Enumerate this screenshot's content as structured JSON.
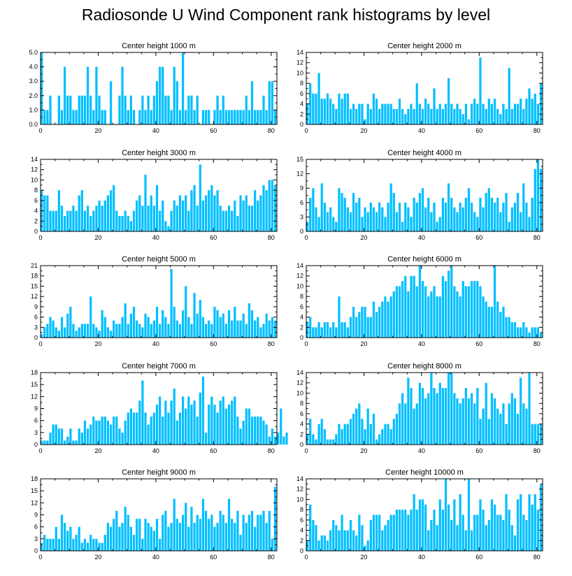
{
  "figure_title": "Radiosonde U Wind Component rank histograms by level",
  "colors": {
    "bar": "#00bfff",
    "axis": "#000000",
    "background": "#ffffff"
  },
  "chart_data": [
    {
      "type": "bar",
      "title": "Center height 1000 m",
      "xlabel": "",
      "ylabel": "",
      "xlim": [
        0,
        82
      ],
      "ylim": [
        0,
        5
      ],
      "xticks": [
        0,
        20,
        40,
        60,
        80
      ],
      "yticks": [
        0,
        1,
        2,
        3,
        4,
        5
      ],
      "ytick_labels": [
        "0.0",
        "1.0",
        "2.0",
        "3.0",
        "4.0",
        "5.0"
      ],
      "values": [
        5,
        1,
        1,
        2,
        0,
        0,
        2,
        1,
        4,
        2,
        2,
        1,
        1,
        2,
        2,
        2,
        4,
        2,
        1,
        4,
        2,
        1,
        1,
        0,
        3,
        0,
        0,
        2,
        4,
        2,
        1,
        2,
        1,
        0,
        1,
        2,
        1,
        2,
        1,
        2,
        3,
        4,
        4,
        2,
        2,
        1,
        4,
        3,
        1,
        5,
        1,
        2,
        2,
        1,
        2,
        0,
        1,
        1,
        1,
        0,
        1,
        2,
        1,
        2,
        1,
        1,
        1,
        1,
        1,
        1,
        1,
        2,
        1,
        3,
        1,
        1,
        1,
        2,
        1,
        3,
        3,
        1
      ]
    },
    {
      "type": "bar",
      "title": "Center height 2000 m",
      "xlabel": "",
      "ylabel": "",
      "xlim": [
        0,
        82
      ],
      "ylim": [
        0,
        14
      ],
      "xticks": [
        0,
        20,
        40,
        60,
        80
      ],
      "yticks": [
        0,
        2,
        4,
        6,
        8,
        10,
        12,
        14
      ],
      "ytick_labels": [
        "0",
        "2",
        "4",
        "6",
        "8",
        "10",
        "12",
        "14"
      ],
      "values": [
        4,
        8,
        6,
        6,
        10,
        5,
        5,
        6,
        5,
        4,
        3,
        6,
        5,
        6,
        6,
        3,
        4,
        3,
        4,
        4,
        1,
        4,
        3,
        6,
        5,
        3,
        4,
        4,
        4,
        4,
        3,
        3,
        5,
        3,
        2,
        3,
        4,
        3,
        8,
        4,
        3,
        5,
        4,
        3,
        7,
        3,
        4,
        3,
        4,
        9,
        4,
        3,
        4,
        3,
        2,
        4,
        1,
        4,
        5,
        4,
        13,
        4,
        3,
        5,
        4,
        5,
        3,
        2,
        4,
        3,
        11,
        3,
        4,
        4,
        5,
        3,
        5,
        7,
        5,
        6,
        4,
        8
      ]
    },
    {
      "type": "bar",
      "title": "Center height 3000 m",
      "xlabel": "",
      "ylabel": "",
      "xlim": [
        0,
        82
      ],
      "ylim": [
        0,
        14
      ],
      "xticks": [
        0,
        20,
        40,
        60,
        80
      ],
      "yticks": [
        0,
        2,
        4,
        6,
        8,
        10,
        12,
        14
      ],
      "ytick_labels": [
        "0",
        "2",
        "4",
        "6",
        "8",
        "10",
        "12",
        "14"
      ],
      "values": [
        8,
        7,
        7,
        4,
        4,
        4,
        8,
        5,
        3,
        4,
        4,
        5,
        4,
        7,
        8,
        4,
        5,
        3,
        4,
        5,
        6,
        5,
        6,
        7,
        8,
        9,
        4,
        3,
        3,
        4,
        3,
        2,
        4,
        6,
        7,
        5,
        11,
        5,
        7,
        5,
        9,
        4,
        6,
        2,
        1,
        4,
        6,
        5,
        7,
        6,
        7,
        4,
        8,
        9,
        5,
        13,
        6,
        7,
        8,
        9,
        7,
        8,
        5,
        4,
        4,
        5,
        4,
        6,
        3,
        7,
        6,
        7,
        5,
        5,
        8,
        6,
        7,
        9,
        8,
        10,
        10,
        9
      ]
    },
    {
      "type": "bar",
      "title": "Center height 4000 m",
      "xlabel": "",
      "ylabel": "",
      "xlim": [
        0,
        82
      ],
      "ylim": [
        0,
        15
      ],
      "xticks": [
        0,
        20,
        40,
        60,
        80
      ],
      "yticks": [
        0,
        3,
        6,
        9,
        12,
        15
      ],
      "ytick_labels": [
        "0",
        "3",
        "6",
        "9",
        "12",
        "15"
      ],
      "values": [
        2,
        7,
        9,
        5,
        3,
        10,
        6,
        4,
        5,
        3,
        2,
        9,
        8,
        7,
        5,
        4,
        8,
        6,
        7,
        3,
        5,
        4,
        6,
        5,
        4,
        6,
        5,
        3,
        6,
        10,
        8,
        4,
        6,
        2,
        6,
        5,
        3,
        7,
        6,
        8,
        9,
        5,
        7,
        4,
        6,
        2,
        3,
        7,
        6,
        10,
        7,
        5,
        4,
        6,
        5,
        7,
        9,
        6,
        4,
        3,
        7,
        5,
        8,
        9,
        7,
        6,
        7,
        4,
        6,
        8,
        2,
        5,
        6,
        8,
        4,
        10,
        6,
        3,
        7,
        13,
        15,
        13
      ]
    },
    {
      "type": "bar",
      "title": "Center height 5000 m",
      "xlabel": "",
      "ylabel": "",
      "xlim": [
        0,
        82
      ],
      "ylim": [
        0,
        21
      ],
      "xticks": [
        0,
        20,
        40,
        60,
        80
      ],
      "yticks": [
        0,
        3,
        6,
        9,
        12,
        15,
        18,
        21
      ],
      "ytick_labels": [
        "0",
        "3",
        "6",
        "9",
        "12",
        "15",
        "18",
        "21"
      ],
      "values": [
        1,
        3,
        4,
        6,
        5,
        3,
        2,
        6,
        3,
        7,
        9,
        4,
        2,
        3,
        4,
        4,
        4,
        12,
        4,
        3,
        2,
        8,
        6,
        3,
        2,
        5,
        4,
        4,
        6,
        10,
        4,
        7,
        9,
        5,
        4,
        3,
        7,
        6,
        4,
        5,
        9,
        4,
        8,
        6,
        4,
        20,
        9,
        5,
        4,
        8,
        15,
        6,
        4,
        13,
        7,
        11,
        6,
        4,
        5,
        4,
        9,
        8,
        6,
        7,
        4,
        8,
        5,
        9,
        5,
        5,
        7,
        4,
        10,
        8,
        5,
        6,
        3,
        4,
        7,
        5,
        6,
        5
      ]
    },
    {
      "type": "bar",
      "title": "Center height 6000 m",
      "xlabel": "",
      "ylabel": "",
      "xlim": [
        0,
        82
      ],
      "ylim": [
        0,
        14
      ],
      "xticks": [
        0,
        20,
        40,
        60,
        80
      ],
      "yticks": [
        0,
        2,
        4,
        6,
        8,
        10,
        12,
        14
      ],
      "ytick_labels": [
        "0",
        "2",
        "4",
        "6",
        "8",
        "10",
        "12",
        "14"
      ],
      "values": [
        3,
        4,
        2,
        2,
        3,
        2,
        3,
        3,
        2,
        3,
        2,
        8,
        3,
        3,
        2,
        4,
        6,
        4,
        5,
        6,
        6,
        4,
        4,
        7,
        5,
        6,
        7,
        8,
        7,
        8,
        9,
        10,
        10,
        11,
        12,
        9,
        12,
        12,
        10,
        14,
        11,
        10,
        8,
        9,
        10,
        8,
        8,
        12,
        11,
        13,
        14,
        10,
        9,
        8,
        11,
        10,
        10,
        11,
        11,
        11,
        10,
        8,
        7,
        6,
        6,
        14,
        7,
        5,
        6,
        4,
        4,
        3,
        3,
        2,
        2,
        3,
        2,
        1,
        2,
        2,
        2,
        1
      ]
    },
    {
      "type": "bar",
      "title": "Center height 7000 m",
      "xlabel": "",
      "ylabel": "",
      "xlim": [
        0,
        82
      ],
      "ylim": [
        0,
        18
      ],
      "xticks": [
        0,
        20,
        40,
        60,
        80
      ],
      "yticks": [
        0,
        3,
        6,
        9,
        12,
        15,
        18
      ],
      "ytick_labels": [
        "0",
        "3",
        "6",
        "9",
        "12",
        "15",
        "18"
      ],
      "values": [
        1,
        1,
        1,
        3,
        5,
        5,
        4,
        4,
        1,
        2,
        4,
        1,
        1,
        4,
        3,
        6,
        4,
        5,
        7,
        6,
        6,
        7,
        7,
        6,
        5,
        7,
        7,
        4,
        3,
        6,
        8,
        9,
        8,
        8,
        11,
        16,
        8,
        5,
        7,
        8,
        10,
        12,
        7,
        11,
        8,
        11,
        14,
        6,
        8,
        12,
        9,
        12,
        10,
        11,
        7,
        13,
        17,
        3,
        10,
        12,
        10,
        8,
        11,
        12,
        9,
        10,
        11,
        12,
        7,
        4,
        6,
        9,
        9,
        7,
        7,
        7,
        7,
        6,
        5,
        2,
        4,
        2,
        3,
        9,
        2,
        3
      ]
    },
    {
      "type": "bar",
      "title": "Center height 8000 m",
      "xlabel": "",
      "ylabel": "",
      "xlim": [
        0,
        82
      ],
      "ylim": [
        0,
        14
      ],
      "xticks": [
        0,
        20,
        40,
        60,
        80
      ],
      "yticks": [
        0,
        2,
        4,
        6,
        8,
        10,
        12,
        14
      ],
      "ytick_labels": [
        "0",
        "2",
        "4",
        "6",
        "8",
        "10",
        "12",
        "14"
      ],
      "values": [
        2,
        5,
        2,
        1,
        4,
        5,
        3,
        1,
        1,
        1,
        2,
        4,
        3,
        4,
        4,
        5,
        6,
        7,
        8,
        5,
        3,
        7,
        4,
        6,
        1,
        2,
        3,
        4,
        4,
        3,
        5,
        6,
        8,
        10,
        8,
        13,
        11,
        7,
        8,
        12,
        11,
        9,
        10,
        14,
        11,
        10,
        12,
        11,
        11,
        14,
        14,
        10,
        9,
        8,
        9,
        11,
        9,
        10,
        8,
        11,
        5,
        7,
        12,
        5,
        10,
        9,
        7,
        6,
        8,
        4,
        8,
        10,
        9,
        6,
        13,
        8,
        7,
        14,
        4,
        4,
        4,
        4
      ]
    },
    {
      "type": "bar",
      "title": "Center height 9000 m",
      "xlabel": "",
      "ylabel": "",
      "xlim": [
        0,
        82
      ],
      "ylim": [
        0,
        18
      ],
      "xticks": [
        0,
        20,
        40,
        60,
        80
      ],
      "yticks": [
        0,
        3,
        6,
        9,
        12,
        15,
        18
      ],
      "ytick_labels": [
        "0",
        "3",
        "6",
        "9",
        "12",
        "15",
        "18"
      ],
      "values": [
        2,
        4,
        3,
        3,
        3,
        6,
        3,
        9,
        7,
        5,
        6,
        3,
        4,
        6,
        2,
        3,
        2,
        4,
        3,
        3,
        2,
        2,
        4,
        7,
        6,
        8,
        10,
        6,
        7,
        11,
        9,
        6,
        4,
        8,
        8,
        3,
        8,
        7,
        6,
        5,
        8,
        3,
        9,
        10,
        6,
        7,
        13,
        8,
        7,
        9,
        12,
        6,
        11,
        7,
        9,
        8,
        13,
        10,
        8,
        9,
        6,
        7,
        10,
        9,
        7,
        13,
        8,
        7,
        10,
        4,
        9,
        7,
        9,
        10,
        6,
        9,
        9,
        10,
        7,
        10,
        3,
        16
      ]
    },
    {
      "type": "bar",
      "title": "Center height 10000 m",
      "xlabel": "",
      "ylabel": "",
      "xlim": [
        0,
        82
      ],
      "ylim": [
        0,
        14
      ],
      "xticks": [
        0,
        20,
        40,
        60,
        80
      ],
      "yticks": [
        0,
        2,
        4,
        6,
        8,
        10,
        12,
        14
      ],
      "ytick_labels": [
        "0",
        "2",
        "4",
        "6",
        "8",
        "10",
        "12",
        "14"
      ],
      "values": [
        2,
        9,
        6,
        5,
        2,
        3,
        3,
        2,
        4,
        6,
        5,
        4,
        7,
        4,
        4,
        6,
        4,
        3,
        7,
        5,
        1,
        2,
        6,
        7,
        7,
        7,
        4,
        5,
        6,
        7,
        7,
        8,
        8,
        8,
        8,
        7,
        8,
        11,
        8,
        10,
        10,
        9,
        4,
        6,
        8,
        5,
        10,
        8,
        14,
        9,
        6,
        10,
        5,
        11,
        7,
        4,
        14,
        4,
        7,
        7,
        10,
        8,
        5,
        6,
        10,
        9,
        7,
        7,
        6,
        11,
        8,
        5,
        3,
        10,
        11,
        7,
        6,
        11,
        9,
        11,
        8,
        13
      ]
    }
  ]
}
